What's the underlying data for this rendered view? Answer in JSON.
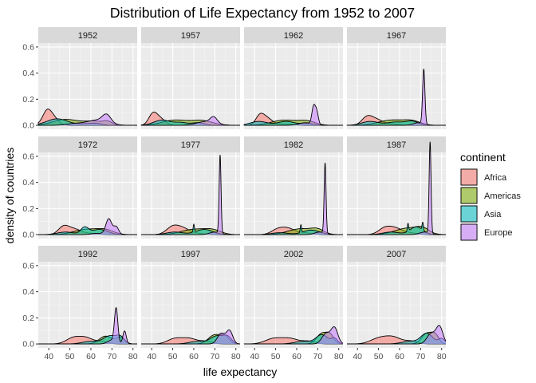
{
  "chart_data": {
    "type": "area",
    "title": "Distribution of Life Expectancy from 1952 to 2007",
    "xlabel": "life expectancy",
    "ylabel": "density of countries",
    "xlim": [
      35,
      82
    ],
    "ylim": [
      -0.03,
      0.63
    ],
    "x_ticks": [
      40,
      50,
      60,
      70,
      80
    ],
    "y_ticks": [
      0.0,
      0.2,
      0.4,
      0.6
    ],
    "x_tick_labels": [
      "40",
      "50",
      "60",
      "70",
      "80"
    ],
    "y_tick_labels": [
      "0.0",
      "0.2",
      "0.4",
      "0.6"
    ],
    "grid": true,
    "facet_layout": {
      "rows": 3,
      "cols": 4
    },
    "legend": {
      "title": "continent",
      "placement": "right",
      "entries": [
        {
          "name": "Africa",
          "color": "#F8766D"
        },
        {
          "name": "Americas",
          "color": "#7CAE00"
        },
        {
          "name": "Asia",
          "color": "#00BFC4"
        },
        {
          "name": "Europe",
          "color": "#C77CFF"
        }
      ]
    },
    "panels": [
      {
        "label": "1952",
        "series": [
          {
            "name": "Africa",
            "peaks": [
              [
                39,
                0.09,
                2.0
              ],
              [
                42,
                0.06,
                2.5
              ],
              [
                33,
                0.01,
                3.0
              ]
            ]
          },
          {
            "name": "Americas",
            "peaks": [
              [
                48,
                0.045,
                6.0
              ],
              [
                62,
                0.03,
                5.0
              ],
              [
                68,
                0.02,
                2.0
              ]
            ]
          },
          {
            "name": "Asia",
            "peaks": [
              [
                44,
                0.05,
                5.0
              ],
              [
                58,
                0.012,
                4.0
              ],
              [
                63,
                0.01,
                2.5
              ]
            ]
          },
          {
            "name": "Europe",
            "peaks": [
              [
                63,
                0.04,
                5.0
              ],
              [
                67.5,
                0.06,
                2.0
              ],
              [
                52,
                0.012,
                4.0
              ]
            ]
          }
        ]
      },
      {
        "label": "1957",
        "series": [
          {
            "name": "Africa",
            "peaks": [
              [
                40.5,
                0.08,
                2.0
              ],
              [
                44,
                0.05,
                2.5
              ]
            ]
          },
          {
            "name": "Americas",
            "peaks": [
              [
                51,
                0.04,
                6.0
              ],
              [
                64,
                0.035,
                5.0
              ]
            ]
          },
          {
            "name": "Asia",
            "peaks": [
              [
                45,
                0.04,
                4.0
              ],
              [
                54,
                0.02,
                3.0
              ],
              [
                62,
                0.02,
                3.0
              ]
            ]
          },
          {
            "name": "Europe",
            "peaks": [
              [
                66,
                0.03,
                4.5
              ],
              [
                69.5,
                0.045,
                1.6
              ]
            ]
          }
        ]
      },
      {
        "label": "1962",
        "series": [
          {
            "name": "Africa",
            "peaks": [
              [
                42.5,
                0.07,
                2.0
              ],
              [
                46,
                0.05,
                2.5
              ],
              [
                54,
                0.01,
                4.0
              ]
            ]
          },
          {
            "name": "Americas",
            "peaks": [
              [
                54,
                0.04,
                6.0
              ],
              [
                65,
                0.03,
                4.0
              ]
            ]
          },
          {
            "name": "Asia",
            "peaks": [
              [
                42,
                0.03,
                4.0
              ],
              [
                55,
                0.03,
                4.0
              ],
              [
                65,
                0.015,
                3.0
              ]
            ]
          },
          {
            "name": "Europe",
            "peaks": [
              [
                68,
                0.13,
                0.8
              ],
              [
                69.5,
                0.1,
                0.8
              ],
              [
                64,
                0.02,
                3.0
              ]
            ]
          }
        ]
      },
      {
        "label": "1967",
        "series": [
          {
            "name": "Africa",
            "peaks": [
              [
                44.5,
                0.06,
                2.5
              ],
              [
                49,
                0.04,
                3.0
              ],
              [
                56,
                0.01,
                4.0
              ]
            ]
          },
          {
            "name": "Americas",
            "peaks": [
              [
                56,
                0.04,
                6.0
              ],
              [
                66,
                0.03,
                4.0
              ]
            ]
          },
          {
            "name": "Asia",
            "peaks": [
              [
                46,
                0.03,
                4.0
              ],
              [
                58,
                0.025,
                4.0
              ],
              [
                66,
                0.03,
                3.0
              ]
            ]
          },
          {
            "name": "Europe",
            "peaks": [
              [
                71.5,
                0.42,
                0.55
              ],
              [
                69,
                0.02,
                2.5
              ]
            ]
          }
        ]
      },
      {
        "label": "1972",
        "series": [
          {
            "name": "Africa",
            "peaks": [
              [
                47,
                0.06,
                2.5
              ],
              [
                52,
                0.04,
                3.0
              ],
              [
                59,
                0.01,
                4.0
              ]
            ]
          },
          {
            "name": "Americas",
            "peaks": [
              [
                58,
                0.04,
                6.0
              ],
              [
                67,
                0.03,
                4.0
              ]
            ]
          },
          {
            "name": "Asia",
            "peaks": [
              [
                48,
                0.02,
                4.0
              ],
              [
                57,
                0.05,
                1.8
              ],
              [
                64,
                0.04,
                4.0
              ]
            ]
          },
          {
            "name": "Europe",
            "peaks": [
              [
                68.5,
                0.12,
                1.4
              ],
              [
                72,
                0.06,
                1.2
              ],
              [
                63,
                0.01,
                3.0
              ]
            ]
          }
        ]
      },
      {
        "label": "1977",
        "series": [
          {
            "name": "Africa",
            "peaks": [
              [
                50,
                0.06,
                3.0
              ],
              [
                55,
                0.04,
                3.0
              ],
              [
                61,
                0.01,
                4.0
              ]
            ]
          },
          {
            "name": "Americas",
            "peaks": [
              [
                60,
                0.04,
                6.0
              ],
              [
                69,
                0.03,
                4.0
              ]
            ]
          },
          {
            "name": "Asia",
            "peaks": [
              [
                51,
                0.02,
                4.0
              ],
              [
                60,
                0.06,
                0.3
              ],
              [
                65,
                0.04,
                4.0
              ]
            ]
          },
          {
            "name": "Europe",
            "peaks": [
              [
                72.5,
                0.6,
                0.45
              ],
              [
                70,
                0.02,
                2.5
              ]
            ]
          }
        ]
      },
      {
        "label": "1982",
        "series": [
          {
            "name": "Africa",
            "peaks": [
              [
                51,
                0.04,
                3.0
              ],
              [
                56,
                0.04,
                3.0
              ],
              [
                63,
                0.015,
                4.0
              ]
            ]
          },
          {
            "name": "Americas",
            "peaks": [
              [
                62,
                0.045,
                6.0
              ],
              [
                70,
                0.03,
                3.0
              ]
            ]
          },
          {
            "name": "Asia",
            "peaks": [
              [
                52,
                0.015,
                4.0
              ],
              [
                62,
                0.06,
                0.3
              ],
              [
                67,
                0.035,
                4.0
              ]
            ]
          },
          {
            "name": "Europe",
            "peaks": [
              [
                73.5,
                0.54,
                0.45
              ],
              [
                71,
                0.02,
                2.5
              ]
            ]
          }
        ]
      },
      {
        "label": "1987",
        "series": [
          {
            "name": "Africa",
            "peaks": [
              [
                53,
                0.05,
                3.0
              ],
              [
                58,
                0.04,
                3.0
              ],
              [
                64,
                0.015,
                4.0
              ]
            ]
          },
          {
            "name": "Americas",
            "peaks": [
              [
                64,
                0.05,
                6.0
              ],
              [
                71,
                0.035,
                3.0
              ]
            ]
          },
          {
            "name": "Asia",
            "peaks": [
              [
                56,
                0.02,
                4.0
              ],
              [
                64,
                0.06,
                0.3
              ],
              [
                68,
                0.06,
                3.0
              ],
              [
                71,
                0.06,
                0.3
              ]
            ]
          },
          {
            "name": "Europe",
            "peaks": [
              [
                74.5,
                0.7,
                0.45
              ],
              [
                72,
                0.02,
                2.5
              ]
            ]
          }
        ]
      },
      {
        "label": "1992",
        "series": [
          {
            "name": "Africa",
            "peaks": [
              [
                52,
                0.05,
                3.5
              ],
              [
                58,
                0.04,
                3.0
              ],
              [
                65,
                0.02,
                3.0
              ]
            ]
          },
          {
            "name": "Americas",
            "peaks": [
              [
                67,
                0.06,
                3.0
              ],
              [
                74,
                0.05,
                2.0
              ]
            ]
          },
          {
            "name": "Asia",
            "peaks": [
              [
                60,
                0.02,
                4.0
              ],
              [
                69,
                0.06,
                3.0
              ],
              [
                74,
                0.05,
                2.0
              ]
            ]
          },
          {
            "name": "Europe",
            "peaks": [
              [
                72,
                0.26,
                0.8
              ],
              [
                76,
                0.1,
                0.8
              ],
              [
                70,
                0.03,
                2.0
              ]
            ]
          }
        ]
      },
      {
        "label": "1997",
        "series": [
          {
            "name": "Africa",
            "peaks": [
              [
                51,
                0.04,
                3.5
              ],
              [
                58,
                0.04,
                3.5
              ],
              [
                66,
                0.02,
                3.0
              ]
            ]
          },
          {
            "name": "Americas",
            "peaks": [
              [
                70,
                0.07,
                3.0
              ],
              [
                75,
                0.05,
                2.0
              ]
            ]
          },
          {
            "name": "Asia",
            "peaks": [
              [
                62,
                0.02,
                4.0
              ],
              [
                71,
                0.06,
                3.0
              ],
              [
                76,
                0.05,
                2.0
              ]
            ]
          },
          {
            "name": "Europe",
            "peaks": [
              [
                73,
                0.08,
                1.8
              ],
              [
                77,
                0.1,
                1.5
              ]
            ]
          }
        ]
      },
      {
        "label": "2002",
        "series": [
          {
            "name": "Africa",
            "peaks": [
              [
                49,
                0.04,
                4.0
              ],
              [
                57,
                0.04,
                4.0
              ],
              [
                66,
                0.02,
                3.0
              ]
            ]
          },
          {
            "name": "Americas",
            "peaks": [
              [
                72,
                0.08,
                2.5
              ],
              [
                76,
                0.06,
                1.8
              ]
            ]
          },
          {
            "name": "Asia",
            "peaks": [
              [
                63,
                0.02,
                4.0
              ],
              [
                72,
                0.07,
                2.8
              ],
              [
                78,
                0.04,
                1.5
              ]
            ]
          },
          {
            "name": "Europe",
            "peaks": [
              [
                74,
                0.08,
                2.0
              ],
              [
                78,
                0.12,
                1.6
              ]
            ]
          }
        ]
      },
      {
        "label": "2007",
        "series": [
          {
            "name": "Africa",
            "peaks": [
              [
                50,
                0.04,
                4.0
              ],
              [
                57,
                0.05,
                4.0
              ],
              [
                66,
                0.02,
                3.0
              ]
            ]
          },
          {
            "name": "Americas",
            "peaks": [
              [
                73,
                0.08,
                2.5
              ],
              [
                77,
                0.06,
                1.8
              ]
            ]
          },
          {
            "name": "Asia",
            "peaks": [
              [
                65,
                0.02,
                4.0
              ],
              [
                73,
                0.08,
                2.8
              ],
              [
                80,
                0.04,
                1.5
              ]
            ]
          },
          {
            "name": "Europe",
            "peaks": [
              [
                75,
                0.08,
                2.0
              ],
              [
                79,
                0.13,
                1.6
              ]
            ]
          }
        ]
      }
    ]
  }
}
